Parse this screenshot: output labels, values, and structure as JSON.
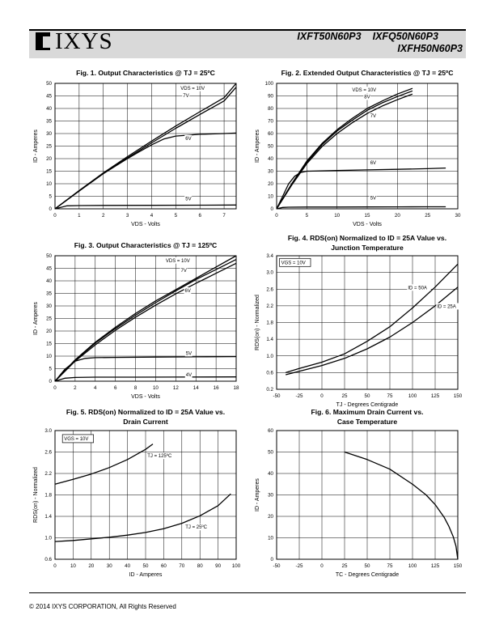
{
  "header": {
    "brand": "IXYS",
    "part_numbers": [
      "IXFT50N60P3",
      "IXFQ50N60P3",
      "IXFH50N60P3"
    ]
  },
  "footer": {
    "copyright": "© 2014 IXYS CORPORATION,  All Rights Reserved"
  },
  "colors": {
    "grid": "#000000",
    "curve": "#000000",
    "header_band": "#d9d9d9"
  },
  "chart_data": [
    {
      "type": "line",
      "title": "Fig. 1. Output Characteristics @ TJ = 25ºC",
      "xlabel": "VDS - Volts",
      "ylabel": "ID - Amperes",
      "xlim": [
        0,
        7.5
      ],
      "ylim": [
        0,
        50
      ],
      "xticks": [
        0,
        1,
        2,
        3,
        4,
        5,
        6,
        7
      ],
      "yticks": [
        0,
        5,
        10,
        15,
        20,
        25,
        30,
        35,
        40,
        45,
        50
      ],
      "grid": true,
      "annotations": [
        {
          "text": "VDS = 10V",
          "x": 5.2,
          "y": 47.5
        },
        {
          "text": "7V",
          "x": 5.3,
          "y": 44.5
        },
        {
          "text": "6V",
          "x": 5.4,
          "y": 27.5
        },
        {
          "text": "5V",
          "x": 5.4,
          "y": 3.4
        }
      ],
      "series": [
        {
          "x": [
            0,
            1,
            2,
            3,
            4,
            5,
            6,
            7,
            7.5
          ],
          "y": [
            0,
            7.3,
            14.3,
            20.8,
            27,
            33,
            38.7,
            44.3,
            50
          ]
        },
        {
          "x": [
            0,
            1,
            2,
            3,
            4,
            5,
            6,
            7,
            7.5
          ],
          "y": [
            0,
            7.1,
            14,
            20.3,
            26.3,
            32.1,
            37.6,
            43,
            48.5
          ]
        },
        {
          "x": [
            0,
            1,
            2,
            3,
            3.5,
            4,
            4.5,
            5,
            6,
            7,
            7.5
          ],
          "y": [
            0,
            7.1,
            14,
            20,
            22.8,
            25.5,
            27.8,
            29,
            29.7,
            30,
            30.2
          ]
        },
        {
          "x": [
            0,
            0.5,
            1,
            2,
            4,
            6,
            7.5
          ],
          "y": [
            0,
            1.2,
            1.3,
            1.35,
            1.4,
            1.45,
            1.5
          ]
        }
      ]
    },
    {
      "type": "line",
      "title": "Fig. 2. Extended Output Characteristics @ TJ = 25ºC",
      "xlabel": "VDS - Volts",
      "ylabel": "ID - Amperes",
      "xlim": [
        0,
        30
      ],
      "ylim": [
        0,
        100
      ],
      "xticks": [
        0,
        5,
        10,
        15,
        20,
        25,
        30
      ],
      "yticks": [
        0,
        10,
        20,
        30,
        40,
        50,
        60,
        70,
        80,
        90,
        100
      ],
      "grid": true,
      "annotations": [
        {
          "text": "VDS = 10V",
          "x": 12.5,
          "y": 93.5
        },
        {
          "text": "8V",
          "x": 14.5,
          "y": 88
        },
        {
          "text": "7V",
          "x": 15.5,
          "y": 73
        },
        {
          "text": "6V",
          "x": 15.5,
          "y": 35.5
        },
        {
          "text": "5V",
          "x": 15.5,
          "y": 7.5
        }
      ],
      "series": [
        {
          "x": [
            0,
            2.5,
            5,
            7.5,
            10,
            12.5,
            15,
            17.5,
            20,
            22.5
          ],
          "y": [
            0,
            20,
            38,
            52,
            63,
            72,
            80,
            86,
            91.5,
            96
          ]
        },
        {
          "x": [
            0,
            2.5,
            5,
            7.5,
            10,
            12.5,
            15,
            17.5,
            20,
            22.5
          ],
          "y": [
            0,
            19.5,
            37,
            51,
            62,
            70.5,
            78.5,
            84.5,
            89.5,
            94
          ]
        },
        {
          "x": [
            0,
            2.5,
            5,
            7.5,
            10,
            12.5,
            15,
            17.5,
            20,
            22.5
          ],
          "y": [
            0,
            19,
            36,
            49.5,
            60,
            68.5,
            76,
            82,
            87,
            91.5
          ]
        },
        {
          "x": [
            0,
            1,
            2,
            3,
            4,
            5,
            10,
            15,
            20,
            25,
            28
          ],
          "y": [
            0,
            10,
            20,
            26,
            29,
            30,
            30.5,
            31,
            31.5,
            32,
            32.5
          ]
        },
        {
          "x": [
            0,
            1,
            2,
            5,
            10,
            15,
            20,
            25,
            28
          ],
          "y": [
            0,
            1.1,
            1.3,
            1.4,
            1.45,
            1.5,
            1.55,
            1.6,
            1.6
          ]
        }
      ]
    },
    {
      "type": "line",
      "title": "Fig. 3. Output Characteristics @ TJ = 125ºC",
      "xlabel": "VDS - Volts",
      "ylabel": "ID - Amperes",
      "xlim": [
        0,
        18
      ],
      "ylim": [
        0,
        50
      ],
      "xticks": [
        0,
        2,
        4,
        6,
        8,
        10,
        12,
        14,
        16,
        18
      ],
      "yticks": [
        0,
        5,
        10,
        15,
        20,
        25,
        30,
        35,
        40,
        45,
        50
      ],
      "grid": true,
      "annotations": [
        {
          "text": "VDS = 10V",
          "x": 11,
          "y": 47.5
        },
        {
          "text": "7V",
          "x": 12.5,
          "y": 43.5
        },
        {
          "text": "6V",
          "x": 12.9,
          "y": 35.5
        },
        {
          "text": "5V",
          "x": 13,
          "y": 10.5
        },
        {
          "text": "4V",
          "x": 13,
          "y": 2
        }
      ],
      "series": [
        {
          "x": [
            0,
            2,
            4,
            6,
            8,
            10,
            12,
            14,
            16,
            18
          ],
          "y": [
            0,
            8.5,
            15.5,
            21.5,
            27,
            32,
            36.5,
            41,
            45.5,
            50
          ]
        },
        {
          "x": [
            0,
            2,
            4,
            6,
            8,
            10,
            12,
            14,
            16,
            18
          ],
          "y": [
            0,
            8.3,
            15.2,
            21,
            26.3,
            31.3,
            36,
            40.5,
            44.5,
            48.5
          ]
        },
        {
          "x": [
            0,
            2,
            4,
            6,
            8,
            10,
            12,
            14,
            16,
            18
          ],
          "y": [
            0,
            8,
            14.5,
            20.3,
            25.5,
            30.3,
            34.8,
            39,
            43,
            47
          ]
        },
        {
          "x": [
            0,
            1,
            2,
            3,
            4,
            6,
            10,
            14,
            18
          ],
          "y": [
            0,
            4.8,
            8,
            9.1,
            9.4,
            9.5,
            9.6,
            9.7,
            9.8
          ]
        },
        {
          "x": [
            0,
            1,
            2,
            4,
            8,
            12,
            18
          ],
          "y": [
            0,
            1.2,
            1.5,
            1.6,
            1.6,
            1.65,
            1.7
          ]
        }
      ]
    },
    {
      "type": "line",
      "title": "Fig. 4. RDS(on) Normalized to ID = 25A Value vs. Junction Temperature",
      "xlabel": "TJ - Degrees Centigrade",
      "ylabel": "RDS(on) - Normalized",
      "xlim": [
        -50,
        150
      ],
      "ylim": [
        0.2,
        3.4
      ],
      "xticks": [
        -50,
        -25,
        0,
        25,
        50,
        75,
        100,
        125,
        150
      ],
      "yticks": [
        0.2,
        0.6,
        1.0,
        1.4,
        1.8,
        2.2,
        2.6,
        3.0,
        3.4
      ],
      "ytick_labels": [
        "0.2",
        "0.6",
        "1.0",
        "1.4",
        "1.8",
        "2.2",
        "2.6",
        "3.0",
        "3.4"
      ],
      "grid": true,
      "annotations": [
        {
          "text": "VGS = 10V",
          "x": -45,
          "y": 3.2,
          "boxed": true
        },
        {
          "text": "ID = 50A",
          "x": 95,
          "y": 2.6
        },
        {
          "text": "ID = 25A",
          "x": 127,
          "y": 2.15
        }
      ],
      "series": [
        {
          "name": "ID = 50A",
          "x": [
            -40,
            -25,
            0,
            25,
            50,
            75,
            100,
            125,
            150
          ],
          "y": [
            0.6,
            0.7,
            0.85,
            1.05,
            1.35,
            1.7,
            2.15,
            2.65,
            3.2
          ]
        },
        {
          "name": "ID = 25A",
          "x": [
            -40,
            -25,
            0,
            25,
            50,
            75,
            100,
            125,
            150
          ],
          "y": [
            0.55,
            0.63,
            0.77,
            0.94,
            1.17,
            1.45,
            1.8,
            2.2,
            2.65
          ]
        }
      ]
    },
    {
      "type": "line",
      "title": "Fig. 5. RDS(on) Normalized to ID = 25A Value vs. Drain Current",
      "xlabel": "ID - Amperes",
      "ylabel": "RDS(on) - Normalized",
      "xlim": [
        0,
        100
      ],
      "ylim": [
        0.6,
        3.0
      ],
      "xticks": [
        0,
        10,
        20,
        30,
        40,
        50,
        60,
        70,
        80,
        90,
        100
      ],
      "yticks": [
        0.6,
        1.0,
        1.4,
        1.8,
        2.2,
        2.6,
        3.0
      ],
      "ytick_labels": [
        "0.6",
        "1.0",
        "1.4",
        "1.8",
        "2.2",
        "2.6",
        "3.0"
      ],
      "grid": true,
      "annotations": [
        {
          "text": "VGS = 10V",
          "x": 5,
          "y": 2.82,
          "boxed": true
        },
        {
          "text": "TJ = 125ºC",
          "x": 51,
          "y": 2.5
        },
        {
          "text": "TJ = 25ºC",
          "x": 72,
          "y": 1.17
        }
      ],
      "series": [
        {
          "name": "TJ = 125ºC",
          "x": [
            0,
            10,
            20,
            30,
            40,
            50,
            54
          ],
          "y": [
            2.0,
            2.09,
            2.19,
            2.31,
            2.46,
            2.65,
            2.75
          ]
        },
        {
          "name": "TJ = 25ºC",
          "x": [
            0,
            10,
            20,
            30,
            40,
            50,
            60,
            70,
            80,
            90,
            97
          ],
          "y": [
            0.93,
            0.95,
            0.98,
            1.01,
            1.05,
            1.1,
            1.17,
            1.27,
            1.41,
            1.6,
            1.82
          ]
        }
      ]
    },
    {
      "type": "line",
      "title": "Fig. 6. Maximum Drain Current vs. Case Temperature",
      "xlabel": "TC - Degrees Centigrade",
      "ylabel": "ID - Amperes",
      "xlim": [
        -50,
        150
      ],
      "ylim": [
        0,
        60
      ],
      "xticks": [
        -50,
        -25,
        0,
        25,
        50,
        75,
        100,
        125,
        150
      ],
      "yticks": [
        0,
        10,
        20,
        30,
        40,
        50,
        60
      ],
      "grid": true,
      "series": [
        {
          "x": [
            25,
            50,
            75,
            100,
            115,
            125,
            135,
            140,
            145,
            148,
            150
          ],
          "y": [
            50,
            46.5,
            42,
            35,
            30,
            25.5,
            19.5,
            15.5,
            10.5,
            6,
            0
          ]
        }
      ]
    }
  ]
}
